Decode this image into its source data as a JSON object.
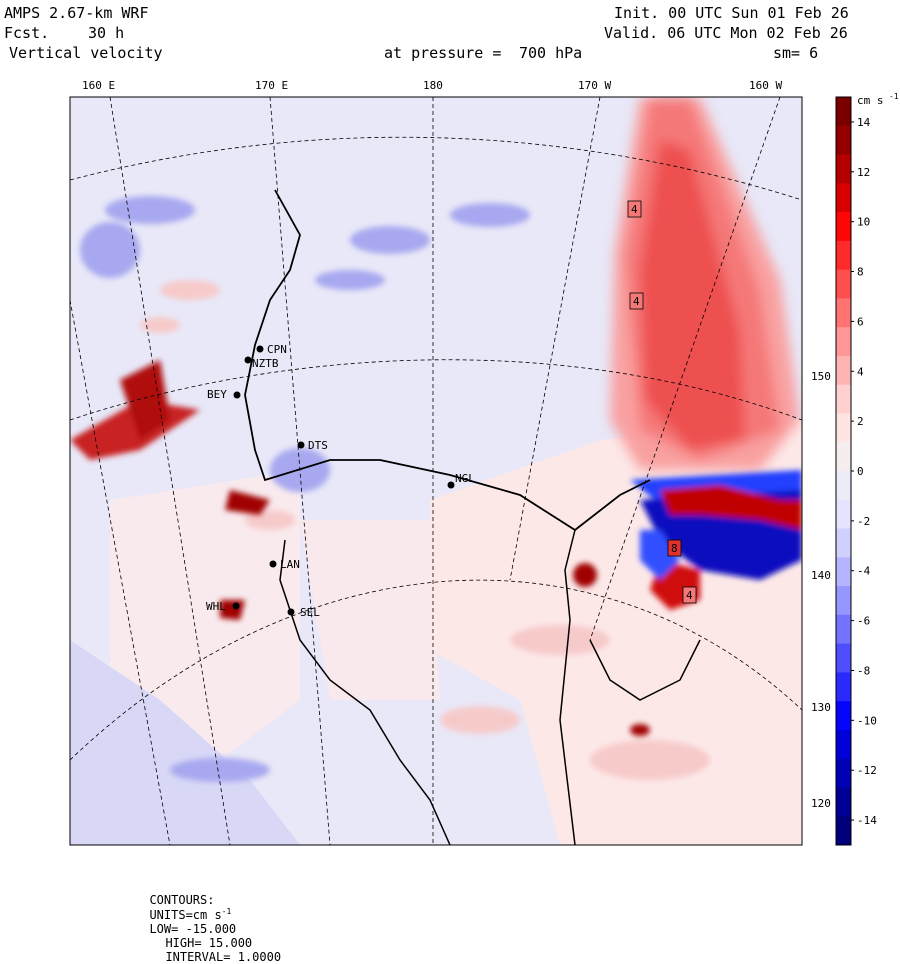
{
  "header": {
    "model": "AMPS 2.67-km WRF",
    "fcst_label": "Fcst.",
    "fcst_value": "30 h",
    "field": "Vertical velocity",
    "init": "Init. 00 UTC Sun 01 Feb 26",
    "valid": "Valid. 06 UTC Mon 02 Feb 26",
    "pressure_label": "at pressure =",
    "pressure_value": "700 hPa",
    "smoothing": "sm= 6"
  },
  "longitude_labels_top": [
    "160 E",
    "170 E",
    "180",
    "170 W",
    "160 W"
  ],
  "longitude_labels_right": [
    "150 W",
    "140 W",
    "130 W",
    "120 W"
  ],
  "stations": [
    {
      "code": "CPN"
    },
    {
      "code": "NZTB"
    },
    {
      "code": "BEY"
    },
    {
      "code": "DTS"
    },
    {
      "code": "NGL"
    },
    {
      "code": "LAN"
    },
    {
      "code": "SEL"
    },
    {
      "code": "WHL"
    }
  ],
  "contour_value_labels": [
    "4",
    "4",
    "8",
    "4"
  ],
  "colorbar": {
    "units": "cm s",
    "units_exponent": "-1",
    "min": -15,
    "max": 15,
    "labels": [
      "14",
      "12",
      "10",
      "8",
      "6",
      "4",
      "2",
      "0",
      "-2",
      "-4",
      "-6",
      "-8",
      "-10",
      "-12",
      "-14"
    ],
    "colors": [
      "#00007a",
      "#000094",
      "#0000b4",
      "#0000d8",
      "#0505ff",
      "#2a2aff",
      "#4e4eff",
      "#7373ff",
      "#9696ff",
      "#b4b4ff",
      "#d0d0ff",
      "#e4e4ff",
      "#ececf8",
      "#f6eeee",
      "#ffe4e4",
      "#ffd0d0",
      "#ffb4b4",
      "#ff9696",
      "#ff7373",
      "#ff4e4e",
      "#ff2a2a",
      "#ff0505",
      "#d80000",
      "#b40000",
      "#940000",
      "#7a0000"
    ]
  },
  "footer": {
    "contours_label": "CONTOURS:",
    "units_label": "UNITS=cm s",
    "units_exp": "-1",
    "low": "LOW= -15.000",
    "high": "HIGH= 15.000",
    "interval": "INTERVAL= 1.0000"
  }
}
